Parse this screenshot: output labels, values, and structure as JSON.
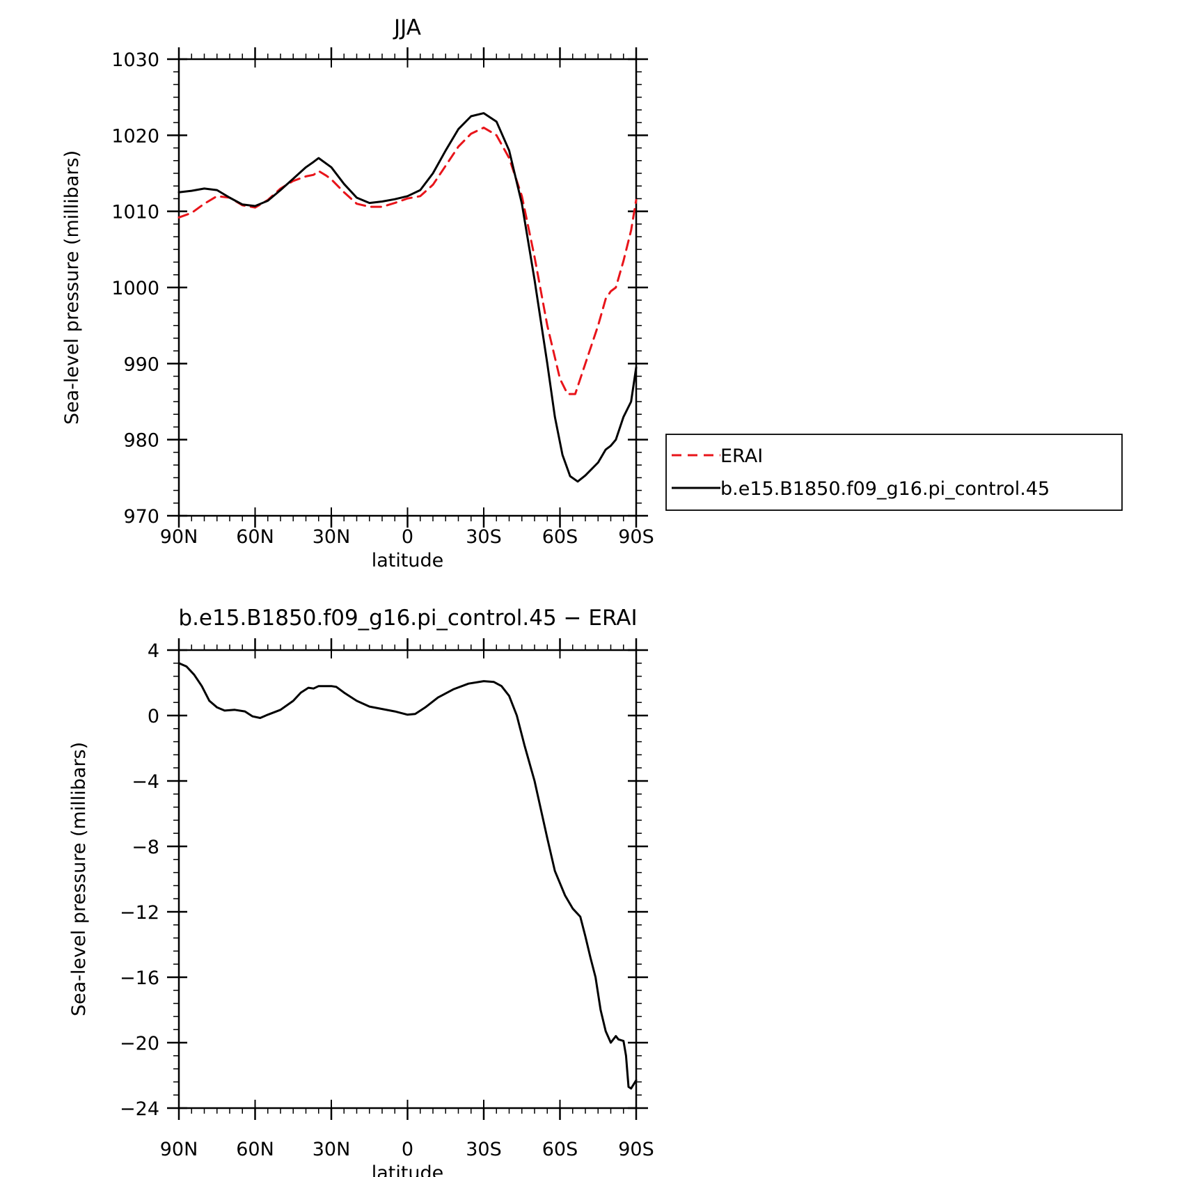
{
  "chart_data": [
    {
      "type": "line",
      "title": "JJA",
      "xlabel": "latitude",
      "ylabel": "Sea-level pressure (millibars)",
      "xlim": [
        90,
        -90
      ],
      "ylim": [
        970,
        1030
      ],
      "x_ticks": [
        90,
        60,
        30,
        0,
        -30,
        -60,
        -90
      ],
      "x_tick_labels": [
        "90N",
        "60N",
        "30N",
        "0",
        "30S",
        "60S",
        "90S"
      ],
      "y_ticks": [
        970,
        980,
        990,
        1000,
        1010,
        1020,
        1030
      ],
      "y_tick_labels": [
        "970",
        "980",
        "990",
        "1000",
        "1010",
        "1020",
        "1030"
      ],
      "legend": {
        "placement": "right",
        "entries": [
          "ERAI",
          "b.e15.B1850.f09_g16.pi_control.45"
        ]
      },
      "series": [
        {
          "name": "ERAI",
          "color": "#e8141a",
          "dash": "dashed",
          "points": [
            [
              90,
              1009.2
            ],
            [
              85,
              1009.8
            ],
            [
              80,
              1011.0
            ],
            [
              75,
              1012.0
            ],
            [
              70,
              1011.8
            ],
            [
              65,
              1010.8
            ],
            [
              60,
              1010.5
            ],
            [
              55,
              1011.5
            ],
            [
              50,
              1013.0
            ],
            [
              45,
              1014.0
            ],
            [
              40,
              1014.6
            ],
            [
              37,
              1014.8
            ],
            [
              35,
              1015.3
            ],
            [
              32,
              1014.7
            ],
            [
              30,
              1014.2
            ],
            [
              25,
              1012.5
            ],
            [
              20,
              1011.0
            ],
            [
              15,
              1010.6
            ],
            [
              10,
              1010.6
            ],
            [
              5,
              1011.1
            ],
            [
              0,
              1011.7
            ],
            [
              -5,
              1012.0
            ],
            [
              -10,
              1013.5
            ],
            [
              -15,
              1016.0
            ],
            [
              -20,
              1018.5
            ],
            [
              -25,
              1020.2
            ],
            [
              -30,
              1021.0
            ],
            [
              -35,
              1020.0
            ],
            [
              -40,
              1017.0
            ],
            [
              -45,
              1012.0
            ],
            [
              -50,
              1004.0
            ],
            [
              -55,
              995.0
            ],
            [
              -60,
              988.0
            ],
            [
              -63,
              986.0
            ],
            [
              -66,
              986.0
            ],
            [
              -70,
              990.0
            ],
            [
              -75,
              995.0
            ],
            [
              -78,
              998.5
            ],
            [
              -80,
              999.5
            ],
            [
              -82,
              1000.0
            ],
            [
              -85,
              1003.5
            ],
            [
              -88,
              1007.5
            ],
            [
              -90,
              1011.5
            ]
          ]
        },
        {
          "name": "b.e15.B1850.f09_g16.pi_control.45",
          "color": "#000000",
          "dash": "solid",
          "points": [
            [
              90,
              1012.5
            ],
            [
              85,
              1012.7
            ],
            [
              80,
              1013.0
            ],
            [
              75,
              1012.8
            ],
            [
              70,
              1011.8
            ],
            [
              65,
              1010.9
            ],
            [
              60,
              1010.7
            ],
            [
              55,
              1011.4
            ],
            [
              50,
              1012.8
            ],
            [
              45,
              1014.3
            ],
            [
              40,
              1015.8
            ],
            [
              37,
              1016.5
            ],
            [
              35,
              1017.0
            ],
            [
              30,
              1015.8
            ],
            [
              25,
              1013.6
            ],
            [
              20,
              1011.8
            ],
            [
              15,
              1011.1
            ],
            [
              10,
              1011.3
            ],
            [
              5,
              1011.6
            ],
            [
              0,
              1012.0
            ],
            [
              -5,
              1012.8
            ],
            [
              -10,
              1015.0
            ],
            [
              -15,
              1018.0
            ],
            [
              -20,
              1020.8
            ],
            [
              -25,
              1022.5
            ],
            [
              -30,
              1022.9
            ],
            [
              -35,
              1021.8
            ],
            [
              -40,
              1018.0
            ],
            [
              -45,
              1011.0
            ],
            [
              -50,
              1001.0
            ],
            [
              -55,
              990.0
            ],
            [
              -58,
              983.0
            ],
            [
              -61,
              978.0
            ],
            [
              -64,
              975.2
            ],
            [
              -67,
              974.5
            ],
            [
              -70,
              975.3
            ],
            [
              -75,
              977.0
            ],
            [
              -78,
              978.7
            ],
            [
              -80,
              979.2
            ],
            [
              -82,
              980.0
            ],
            [
              -85,
              983.0
            ],
            [
              -88,
              985.0
            ],
            [
              -90,
              989.5
            ]
          ]
        }
      ]
    },
    {
      "type": "line",
      "title": "b.e15.B1850.f09_g16.pi_control.45 − ERAI",
      "xlabel": "latitude",
      "ylabel": "Sea-level pressure (millibars)",
      "xlim": [
        90,
        -90
      ],
      "ylim": [
        -24,
        4
      ],
      "x_ticks": [
        90,
        60,
        30,
        0,
        -30,
        -60,
        -90
      ],
      "x_tick_labels": [
        "90N",
        "60N",
        "30N",
        "0",
        "30S",
        "60S",
        "90S"
      ],
      "y_ticks": [
        4,
        0,
        -4,
        -8,
        -12,
        -16,
        -20,
        -24
      ],
      "y_tick_labels": [
        "4",
        "0",
        "−4",
        "−8",
        "−12",
        "−16",
        "−20",
        "−24"
      ],
      "series": [
        {
          "color": "#000000",
          "dash": "solid",
          "points": [
            [
              90,
              3.2
            ],
            [
              87,
              3.0
            ],
            [
              84,
              2.5
            ],
            [
              81,
              1.8
            ],
            [
              78,
              0.9
            ],
            [
              75,
              0.5
            ],
            [
              72,
              0.3
            ],
            [
              68,
              0.35
            ],
            [
              64,
              0.25
            ],
            [
              61,
              -0.05
            ],
            [
              58,
              -0.15
            ],
            [
              55,
              0.05
            ],
            [
              50,
              0.35
            ],
            [
              45,
              0.9
            ],
            [
              42,
              1.4
            ],
            [
              39,
              1.7
            ],
            [
              37,
              1.65
            ],
            [
              35,
              1.8
            ],
            [
              30,
              1.8
            ],
            [
              28,
              1.75
            ],
            [
              25,
              1.4
            ],
            [
              20,
              0.9
            ],
            [
              15,
              0.55
            ],
            [
              10,
              0.4
            ],
            [
              5,
              0.25
            ],
            [
              0,
              0.05
            ],
            [
              -3,
              0.1
            ],
            [
              -7,
              0.5
            ],
            [
              -12,
              1.1
            ],
            [
              -18,
              1.6
            ],
            [
              -24,
              1.95
            ],
            [
              -30,
              2.1
            ],
            [
              -34,
              2.05
            ],
            [
              -37,
              1.8
            ],
            [
              -40,
              1.2
            ],
            [
              -43,
              0.0
            ],
            [
              -46,
              -1.8
            ],
            [
              -50,
              -4.0
            ],
            [
              -55,
              -7.5
            ],
            [
              -58,
              -9.5
            ],
            [
              -62,
              -11.0
            ],
            [
              -65,
              -11.8
            ],
            [
              -68,
              -12.3
            ],
            [
              -70,
              -13.5
            ],
            [
              -72,
              -14.8
            ],
            [
              -74,
              -16.0
            ],
            [
              -76,
              -18.0
            ],
            [
              -78,
              -19.3
            ],
            [
              -80,
              -20.0
            ],
            [
              -82,
              -19.6
            ],
            [
              -83,
              -19.8
            ],
            [
              -85,
              -19.9
            ],
            [
              -86,
              -20.8
            ],
            [
              -87,
              -22.7
            ],
            [
              -88,
              -22.8
            ],
            [
              -90,
              -22.3
            ]
          ]
        }
      ]
    }
  ]
}
